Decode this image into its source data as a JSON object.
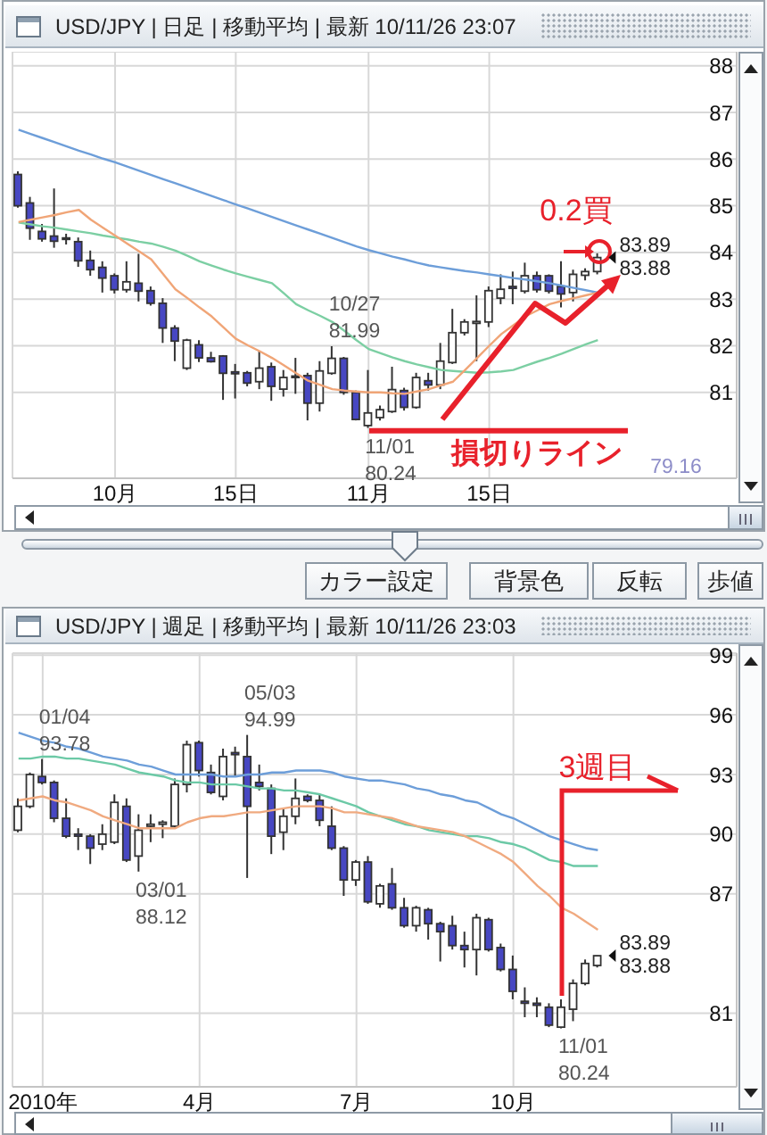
{
  "chart_data": [
    {
      "type": "candlestick",
      "title": "USD/JPY | 日足 | 移動平均 | 最新 10/11/26 23:07",
      "categories": [
        null,
        null,
        null,
        null,
        null,
        null,
        null,
        null,
        "10月",
        null,
        null,
        null,
        null,
        null,
        null,
        null,
        null,
        null,
        "15日",
        null,
        null,
        null,
        null,
        null,
        null,
        null,
        null,
        null,
        null,
        "11月",
        null,
        null,
        null,
        null,
        null,
        null,
        null,
        null,
        null,
        "15日",
        null,
        null,
        null,
        null,
        null,
        null,
        null,
        null,
        null,
        null,
        null,
        null,
        null,
        null,
        null,
        null,
        null,
        null,
        null,
        null
      ],
      "ohlc": [
        [
          85.67,
          85.74,
          84.96,
          85.0
        ],
        [
          85.06,
          85.19,
          84.27,
          84.52
        ],
        [
          84.45,
          84.61,
          84.23,
          84.29
        ],
        [
          84.35,
          85.37,
          84.1,
          84.24
        ],
        [
          84.31,
          84.4,
          84.17,
          84.29
        ],
        [
          84.23,
          84.32,
          83.69,
          83.82
        ],
        [
          83.83,
          84.04,
          83.5,
          83.63
        ],
        [
          83.68,
          83.81,
          83.14,
          83.45
        ],
        [
          83.5,
          83.55,
          83.12,
          83.2
        ],
        [
          83.2,
          83.81,
          83.14,
          83.37
        ],
        [
          83.34,
          83.97,
          82.95,
          83.17
        ],
        [
          83.18,
          83.27,
          82.86,
          82.91
        ],
        [
          82.91,
          83.02,
          82.06,
          82.38
        ],
        [
          82.38,
          82.44,
          81.67,
          82.1
        ],
        [
          81.52,
          82.15,
          81.48,
          82.12
        ],
        [
          82.02,
          82.12,
          81.65,
          81.74
        ],
        [
          81.74,
          81.87,
          81.64,
          81.66
        ],
        [
          81.78,
          81.8,
          80.84,
          81.41
        ],
        [
          81.44,
          81.61,
          80.87,
          81.4
        ],
        [
          81.42,
          81.46,
          81.13,
          81.2
        ],
        [
          81.23,
          81.89,
          81.07,
          81.52
        ],
        [
          81.55,
          81.64,
          80.82,
          81.13
        ],
        [
          81.07,
          81.48,
          80.91,
          81.32
        ],
        [
          81.35,
          81.74,
          80.97,
          81.33
        ],
        [
          81.36,
          81.42,
          80.4,
          80.77
        ],
        [
          80.77,
          81.67,
          80.59,
          81.46
        ],
        [
          81.41,
          81.99,
          81.38,
          81.73
        ],
        [
          81.73,
          81.76,
          80.95,
          81.0
        ],
        [
          81.0,
          81.04,
          80.4,
          80.42
        ],
        [
          80.29,
          81.48,
          80.24,
          80.56
        ],
        [
          80.46,
          80.72,
          80.4,
          80.63
        ],
        [
          80.59,
          81.55,
          80.56,
          81.06
        ],
        [
          81.04,
          81.1,
          80.61,
          80.68
        ],
        [
          80.68,
          81.42,
          80.65,
          81.32
        ],
        [
          81.25,
          81.42,
          81.04,
          81.16
        ],
        [
          81.16,
          82.06,
          81.07,
          81.67
        ],
        [
          81.64,
          82.79,
          81.61,
          82.28
        ],
        [
          82.28,
          82.57,
          82.22,
          82.51
        ],
        [
          82.48,
          83.08,
          81.67,
          82.52
        ],
        [
          82.51,
          83.27,
          82.4,
          83.18
        ],
        [
          83.02,
          83.53,
          82.89,
          83.21
        ],
        [
          83.27,
          83.59,
          82.89,
          83.23
        ],
        [
          83.17,
          83.78,
          83.12,
          83.5
        ],
        [
          83.5,
          83.59,
          83.14,
          83.2
        ],
        [
          83.5,
          83.53,
          83.12,
          83.17
        ],
        [
          83.27,
          83.81,
          82.82,
          83.11
        ],
        [
          83.14,
          83.63,
          82.95,
          83.53
        ],
        [
          83.51,
          83.66,
          83.4,
          83.59
        ],
        [
          83.59,
          83.98,
          83.53,
          83.89
        ],
        null,
        null,
        null,
        null,
        null,
        null,
        null,
        null,
        null,
        null,
        null
      ],
      "colors": [
        "#4747c2",
        "#4747c2",
        "#4747c2",
        "#4747c2",
        "#4747c2",
        "#4747c2",
        "#4747c2",
        "#4747c2",
        "#4747c2",
        "#ffffff",
        "#4747c2",
        "#4747c2",
        "#4747c2",
        "#4747c2",
        "#ffffff",
        "#4747c2",
        "#4747c2",
        "#4747c2",
        "#4747c2",
        "#4747c2",
        "#ffffff",
        "#4747c2",
        "#ffffff",
        "#4747c2",
        "#4747c2",
        "#ffffff",
        "#ffffff",
        "#4747c2",
        "#4747c2",
        "#ffffff",
        "#ffffff",
        "#ffffff",
        "#4747c2",
        "#ffffff",
        "#4747c2",
        "#ffffff",
        "#ffffff",
        "#ffffff",
        "#ffffff",
        "#ffffff",
        "#ffffff",
        "#4747c2",
        "#ffffff",
        "#4747c2",
        "#4747c2",
        "#4747c2",
        "#ffffff",
        "#ffffff",
        "#ffffff",
        null,
        null,
        null,
        null,
        null,
        null,
        null,
        null,
        null,
        null,
        null
      ],
      "series": [
        {
          "type": "line",
          "color": "#6d9ed9",
          "values": [
            86.63,
            86.54,
            86.45,
            86.36,
            86.27,
            86.18,
            86.1,
            86.01,
            85.93,
            85.84,
            85.75,
            85.66,
            85.57,
            85.48,
            85.39,
            85.3,
            85.21,
            85.12,
            85.03,
            84.94,
            84.85,
            84.76,
            84.67,
            84.58,
            84.49,
            84.4,
            84.31,
            84.22,
            84.13,
            84.05,
            83.98,
            83.91,
            83.85,
            83.78,
            83.72,
            83.68,
            83.64,
            83.6,
            83.57,
            83.53,
            83.49,
            83.45,
            83.42,
            83.38,
            83.34,
            83.29,
            83.24,
            83.19,
            83.14,
            null,
            null,
            null,
            null,
            null,
            null,
            null,
            null,
            null,
            null,
            null
          ]
        },
        {
          "type": "line",
          "color": "#7ccfa3",
          "values": [
            84.64,
            84.6,
            84.56,
            84.53,
            84.49,
            84.45,
            84.41,
            84.36,
            84.32,
            84.28,
            84.23,
            84.19,
            84.12,
            84.04,
            83.93,
            83.81,
            83.72,
            83.63,
            83.55,
            83.48,
            83.41,
            83.34,
            83.12,
            82.89,
            82.76,
            82.64,
            82.51,
            82.32,
            82.12,
            81.93,
            81.84,
            81.75,
            81.67,
            81.6,
            81.54,
            81.48,
            81.46,
            81.44,
            81.42,
            81.43,
            81.45,
            81.48,
            81.57,
            81.66,
            81.74,
            81.83,
            81.93,
            82.03,
            82.12,
            null,
            null,
            null,
            null,
            null,
            null,
            null,
            null,
            null,
            null,
            null
          ]
        },
        {
          "type": "line",
          "color": "#f0a577",
          "values": [
            84.65,
            84.7,
            84.75,
            84.8,
            84.86,
            84.91,
            84.7,
            84.53,
            84.36,
            84.19,
            84.02,
            83.85,
            83.53,
            83.21,
            83.02,
            82.82,
            82.63,
            82.39,
            82.15,
            82.01,
            81.88,
            81.74,
            81.58,
            81.41,
            81.25,
            81.16,
            81.07,
            81.04,
            81.02,
            81.0,
            81.0,
            80.98,
            80.97,
            81.02,
            81.07,
            81.15,
            81.23,
            81.48,
            81.74,
            82.0,
            82.25,
            82.44,
            82.63,
            82.76,
            82.89,
            82.96,
            83.02,
            83.08,
            83.14,
            null,
            null,
            null,
            null,
            null,
            null,
            null,
            null,
            null,
            null,
            null
          ]
        }
      ],
      "ylim": [
        79.16,
        88.3
      ],
      "yticks": [
        81,
        82,
        83,
        84,
        85,
        86,
        87,
        88
      ],
      "grid": true,
      "ref_lines": [
        {
          "axis": "y",
          "value": 80.18,
          "label": "損切りライン",
          "color": "#e8212b"
        }
      ],
      "annotations": [
        {
          "text": "10/27\n81.99",
          "y": 81.99
        },
        {
          "text": "11/01\n80.24",
          "y": 80.24
        },
        "83.89\n83.88",
        "0.2買",
        "79.16",
        "カラー設定",
        "背景色",
        "反転",
        "歩値"
      ]
    },
    {
      "type": "candlestick",
      "title": "USD/JPY | 週足 | 移動平均 | 最新 10/11/26 23:03",
      "categories": [
        null,
        null,
        "2010年",
        null,
        null,
        null,
        null,
        null,
        null,
        null,
        null,
        null,
        null,
        null,
        null,
        "4月",
        null,
        null,
        null,
        null,
        null,
        null,
        null,
        null,
        null,
        null,
        null,
        null,
        "7月",
        null,
        null,
        null,
        null,
        null,
        null,
        null,
        null,
        null,
        null,
        null,
        null,
        "10月",
        null,
        null,
        null,
        null,
        null,
        null,
        null,
        null,
        null,
        null,
        null,
        null,
        null,
        null,
        null,
        null,
        null,
        null
      ],
      "ohlc": [
        [
          90.2,
          91.8,
          90.1,
          91.4
        ],
        [
          91.4,
          93.1,
          91.3,
          93.0
        ],
        [
          92.9,
          93.78,
          92.5,
          92.6
        ],
        [
          92.6,
          92.7,
          90.6,
          90.8
        ],
        [
          90.8,
          91.8,
          89.8,
          89.9
        ],
        [
          90.0,
          90.3,
          89.2,
          89.9
        ],
        [
          89.9,
          90.0,
          88.5,
          89.3
        ],
        [
          89.5,
          90.5,
          89.2,
          90.0
        ],
        [
          89.6,
          92.0,
          89.5,
          91.6
        ],
        [
          91.4,
          91.8,
          88.6,
          88.7
        ],
        [
          88.9,
          91.0,
          88.12,
          90.2
        ],
        [
          90.4,
          91.0,
          89.6,
          90.5
        ],
        [
          90.5,
          90.7,
          89.8,
          90.6
        ],
        [
          90.4,
          92.8,
          90.3,
          92.5
        ],
        [
          92.5,
          94.7,
          92.1,
          94.5
        ],
        [
          94.6,
          94.7,
          92.9,
          93.2
        ],
        [
          93.1,
          93.5,
          92.0,
          92.1
        ],
        [
          91.9,
          94.3,
          91.7,
          93.9
        ],
        [
          94.1,
          94.4,
          92.9,
          94.0
        ],
        [
          93.9,
          94.99,
          87.8,
          91.4
        ],
        [
          92.6,
          93.5,
          92.2,
          92.4
        ],
        [
          92.3,
          92.5,
          89.0,
          89.9
        ],
        [
          90.1,
          91.3,
          89.2,
          90.9
        ],
        [
          90.9,
          92.8,
          90.5,
          91.8
        ],
        [
          91.9,
          92.0,
          91.6,
          91.7
        ],
        [
          91.7,
          92.0,
          90.4,
          90.7
        ],
        [
          90.4,
          91.4,
          89.2,
          89.3
        ],
        [
          89.3,
          89.4,
          86.9,
          87.7
        ],
        [
          87.7,
          88.7,
          87.4,
          88.6
        ],
        [
          88.6,
          88.9,
          86.5,
          86.6
        ],
        [
          86.5,
          87.5,
          86.3,
          87.4
        ],
        [
          87.5,
          88.3,
          86.2,
          86.3
        ],
        [
          86.3,
          86.8,
          85.3,
          85.4
        ],
        [
          85.4,
          86.4,
          85.1,
          86.3
        ],
        [
          86.2,
          86.3,
          84.7,
          85.5
        ],
        [
          85.5,
          85.6,
          83.6,
          85.1
        ],
        [
          85.4,
          85.9,
          84.2,
          84.4
        ],
        [
          84.4,
          85.1,
          83.3,
          84.2
        ],
        [
          84.2,
          86.0,
          82.9,
          85.8
        ],
        [
          85.7,
          85.8,
          84.1,
          84.2
        ],
        [
          84.3,
          84.5,
          83.1,
          83.2
        ],
        [
          83.2,
          83.9,
          81.7,
          82.1
        ],
        [
          81.6,
          82.3,
          80.8,
          81.5
        ],
        [
          81.5,
          81.8,
          80.8,
          81.4
        ],
        [
          81.3,
          81.5,
          80.3,
          80.4
        ],
        [
          80.3,
          81.7,
          80.24,
          81.3
        ],
        [
          81.2,
          82.7,
          80.6,
          82.5
        ],
        [
          82.5,
          83.7,
          82.4,
          83.5
        ],
        [
          83.4,
          83.9,
          83.3,
          83.89
        ],
        null,
        null,
        null,
        null,
        null,
        null,
        null,
        null,
        null,
        null,
        null
      ],
      "colors": [
        "#ffffff",
        "#ffffff",
        "#4747c2",
        "#4747c2",
        "#4747c2",
        "#4747c2",
        "#4747c2",
        "#ffffff",
        "#ffffff",
        "#4747c2",
        "#ffffff",
        "#ffffff",
        "#ffffff",
        "#ffffff",
        "#ffffff",
        "#4747c2",
        "#4747c2",
        "#ffffff",
        "#4747c2",
        "#4747c2",
        "#4747c2",
        "#4747c2",
        "#ffffff",
        "#ffffff",
        "#4747c2",
        "#4747c2",
        "#4747c2",
        "#4747c2",
        "#ffffff",
        "#4747c2",
        "#ffffff",
        "#4747c2",
        "#4747c2",
        "#ffffff",
        "#4747c2",
        "#4747c2",
        "#4747c2",
        "#4747c2",
        "#ffffff",
        "#4747c2",
        "#4747c2",
        "#4747c2",
        "#4747c2",
        "#4747c2",
        "#4747c2",
        "#ffffff",
        "#ffffff",
        "#ffffff",
        "#ffffff",
        null,
        null,
        null,
        null,
        null,
        null,
        null,
        null,
        null,
        null,
        null
      ],
      "series": [
        {
          "type": "line",
          "color": "#6d9ed9",
          "values": [
            95.1,
            94.9,
            94.7,
            94.6,
            94.4,
            94.3,
            94.1,
            93.9,
            93.8,
            93.7,
            93.5,
            93.4,
            93.2,
            93.0,
            93.0,
            93.0,
            93.0,
            92.9,
            92.9,
            93.0,
            93.0,
            93.1,
            93.1,
            93.2,
            93.2,
            93.2,
            93.1,
            92.9,
            92.8,
            92.7,
            92.7,
            92.6,
            92.5,
            92.3,
            92.2,
            92.0,
            91.9,
            91.7,
            91.6,
            91.3,
            91.0,
            90.8,
            90.5,
            90.2,
            89.9,
            89.7,
            89.5,
            89.3,
            89.2,
            null,
            null,
            null,
            null,
            null,
            null,
            null,
            null,
            null,
            null,
            null
          ]
        },
        {
          "type": "line",
          "color": "#6cc9a6",
          "values": [
            93.8,
            93.8,
            93.9,
            93.9,
            93.8,
            93.8,
            93.7,
            93.6,
            93.5,
            93.3,
            93.1,
            93.0,
            92.9,
            92.7,
            92.6,
            92.6,
            92.5,
            92.5,
            92.5,
            92.4,
            92.3,
            92.3,
            92.2,
            92.2,
            92.1,
            92.0,
            91.8,
            91.6,
            91.4,
            91.1,
            90.9,
            90.7,
            90.5,
            90.4,
            90.2,
            90.1,
            90.0,
            89.9,
            89.9,
            89.8,
            89.6,
            89.5,
            89.3,
            89.0,
            88.7,
            88.6,
            88.4,
            88.4,
            88.4,
            null,
            null,
            null,
            null,
            null,
            null,
            null,
            null,
            null,
            null,
            null
          ]
        },
        {
          "type": "line",
          "color": "#f0aa80",
          "values": [
            91.7,
            91.8,
            91.9,
            91.7,
            91.6,
            91.4,
            91.2,
            90.9,
            90.7,
            90.5,
            90.3,
            90.3,
            90.3,
            90.3,
            90.6,
            90.8,
            90.9,
            90.9,
            91.0,
            91.1,
            91.1,
            91.2,
            91.3,
            91.4,
            91.4,
            91.4,
            91.3,
            91.1,
            91.1,
            91.0,
            90.9,
            90.8,
            90.6,
            90.4,
            90.3,
            90.2,
            90.1,
            89.9,
            89.6,
            89.3,
            89.0,
            88.6,
            88.0,
            87.4,
            86.9,
            86.3,
            86.0,
            85.6,
            85.2,
            null,
            null,
            null,
            null,
            null,
            null,
            null,
            null,
            null,
            null,
            null
          ]
        }
      ],
      "ylim": [
        77.3,
        99.1
      ],
      "yticks": [
        81,
        87,
        90,
        93,
        96,
        99
      ],
      "grid": true,
      "annotations": [
        {
          "text": "01/04\n93.78",
          "y": 93.78
        },
        "03/01\n88.12",
        "05/03\n94.99",
        "11/01\n80.24",
        "83.89\n83.88",
        "3週目"
      ]
    }
  ]
}
